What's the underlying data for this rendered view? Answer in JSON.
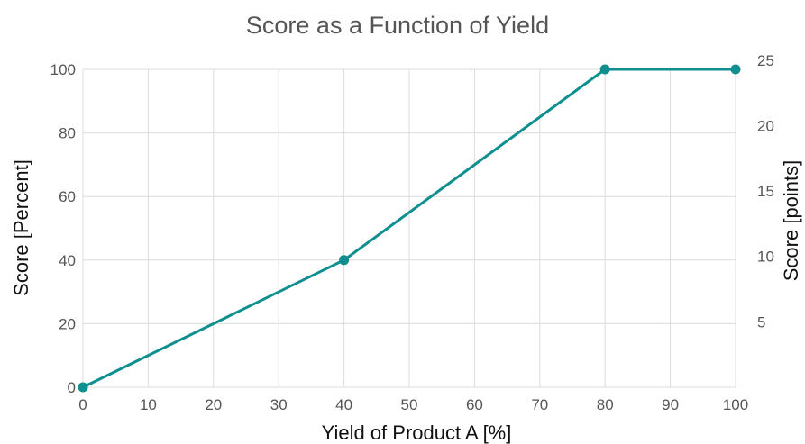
{
  "chart_data": {
    "type": "line",
    "title": "Score as a Function of Yield",
    "xlabel": "Yield of Product A [%]",
    "ylabel": "Score [Percent]",
    "y2label": "Score [points]",
    "xlim": [
      0,
      100
    ],
    "ylim": [
      0,
      100
    ],
    "y2lim": [
      0,
      24.3
    ],
    "x_ticks": [
      0,
      10,
      20,
      30,
      40,
      50,
      60,
      70,
      80,
      90,
      100
    ],
    "y_ticks": [
      0,
      20,
      40,
      60,
      80,
      100
    ],
    "y2_ticks": [
      5,
      10,
      15,
      20,
      25
    ],
    "grid": true,
    "series": [
      {
        "x": [
          0,
          40,
          80,
          100
        ],
        "y": [
          0,
          40,
          100,
          100
        ],
        "color": "#0f8f8f"
      }
    ]
  }
}
